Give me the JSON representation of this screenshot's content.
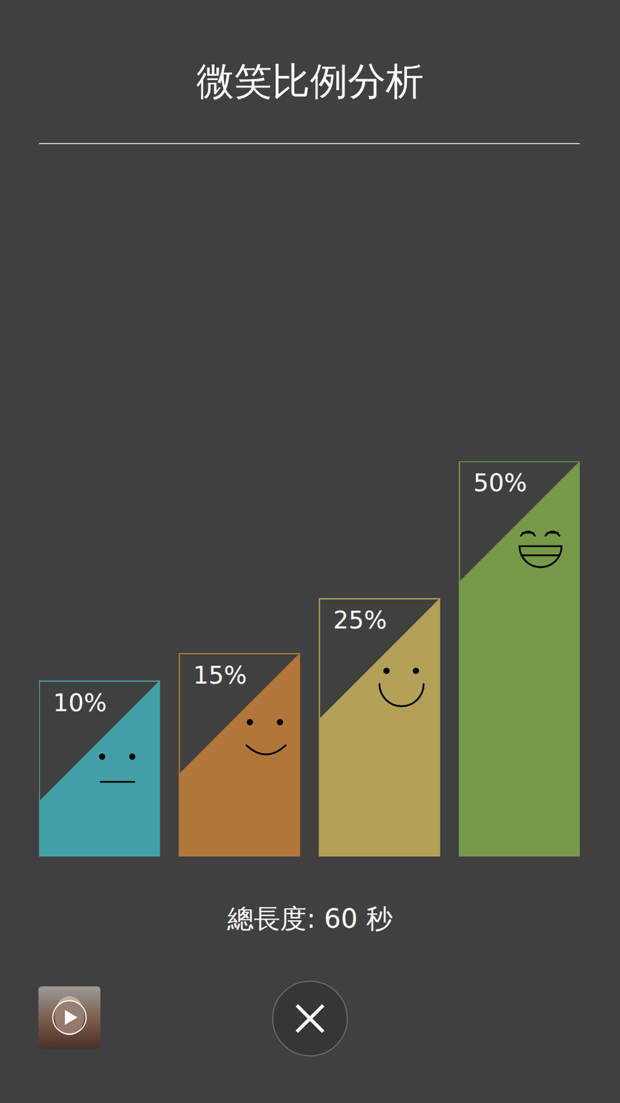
{
  "chart_data": {
    "type": "bar",
    "title": "微笑比例分析",
    "caption": "總長度: 60 秒",
    "categories": [
      null,
      null,
      null,
      null
    ],
    "values": [
      10,
      15,
      25,
      50
    ],
    "value_labels": [
      "10%",
      "15%",
      "25%",
      "50%"
    ],
    "colors": [
      "#44a0a8",
      "#b1773a",
      "#b2a156",
      "#76994a"
    ],
    "ylim": [
      -22,
      50
    ],
    "data_labels": true,
    "tick_labels": false
  }
}
